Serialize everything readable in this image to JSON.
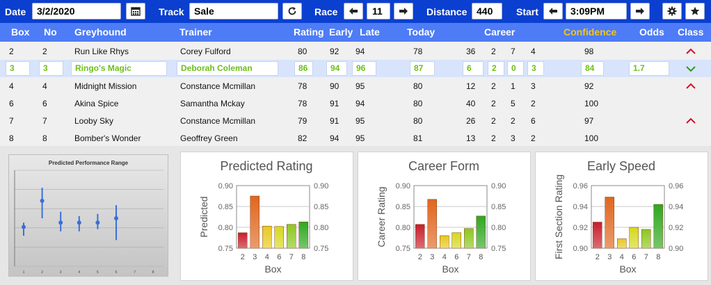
{
  "toolbar": {
    "date_label": "Date",
    "date_value": "3/2/2020",
    "track_label": "Track",
    "track_value": "Sale",
    "race_label": "Race",
    "race_value": "11",
    "distance_label": "Distance",
    "distance_value": "440",
    "start_label": "Start",
    "start_value": "3:09PM"
  },
  "columns": {
    "box": "Box",
    "no": "No",
    "greyhound": "Greyhound",
    "trainer": "Trainer",
    "rating": "Rating",
    "early": "Early",
    "late": "Late",
    "today": "Today",
    "career": "Career",
    "confidence": "Confidence",
    "odds": "Odds",
    "class": "Class"
  },
  "colors": {
    "toolbar": "#0b3fcf",
    "header": "#4d7cf6",
    "confidence_header": "#f5c518",
    "selected_text": "#6cbf1a",
    "up": "#d0102a",
    "down": "#2a9a1a"
  },
  "rows": [
    {
      "box": "2",
      "no": "2",
      "greyhound": "Run Like Rhys",
      "trainer": "Corey Fulford",
      "rating": "80",
      "early": "92",
      "late": "94",
      "today": "78",
      "c1": "36",
      "c2": "2",
      "c3": "7",
      "c4": "4",
      "confidence": "98",
      "odds": "",
      "class": "up",
      "selected": false
    },
    {
      "box": "3",
      "no": "3",
      "greyhound": "Ringo's Magic",
      "trainer": "Deborah Coleman",
      "rating": "86",
      "early": "94",
      "late": "96",
      "today": "87",
      "c1": "6",
      "c2": "2",
      "c3": "0",
      "c4": "3",
      "confidence": "84",
      "odds": "1.7",
      "class": "down",
      "selected": true
    },
    {
      "box": "4",
      "no": "4",
      "greyhound": "Midnight Mission",
      "trainer": "Constance Mcmillan",
      "rating": "78",
      "early": "90",
      "late": "95",
      "today": "80",
      "c1": "12",
      "c2": "2",
      "c3": "1",
      "c4": "3",
      "confidence": "92",
      "odds": "",
      "class": "up",
      "selected": false
    },
    {
      "box": "6",
      "no": "6",
      "greyhound": "Akina Spice",
      "trainer": "Samantha Mckay",
      "rating": "78",
      "early": "91",
      "late": "94",
      "today": "80",
      "c1": "40",
      "c2": "2",
      "c3": "5",
      "c4": "2",
      "confidence": "100",
      "odds": "",
      "class": "",
      "selected": false
    },
    {
      "box": "7",
      "no": "7",
      "greyhound": "Looby Sky",
      "trainer": "Constance Mcmillan",
      "rating": "79",
      "early": "91",
      "late": "95",
      "today": "80",
      "c1": "26",
      "c2": "2",
      "c3": "2",
      "c4": "6",
      "confidence": "97",
      "odds": "",
      "class": "up",
      "selected": false
    },
    {
      "box": "8",
      "no": "8",
      "greyhound": "Bomber's Wonder",
      "trainer": "Geoffrey Green",
      "rating": "82",
      "early": "94",
      "late": "95",
      "today": "81",
      "c1": "13",
      "c2": "2",
      "c3": "3",
      "c4": "2",
      "confidence": "100",
      "odds": "",
      "class": "",
      "selected": false
    }
  ],
  "chart_data": [
    {
      "type": "scatter",
      "title": "Predicted Performance Range",
      "x": [
        1,
        2,
        3,
        4,
        5,
        6
      ],
      "x_ticks": [
        "1",
        "2",
        "3",
        "4",
        "5",
        "6",
        "7",
        "8"
      ],
      "y": [
        0.79,
        0.85,
        0.8,
        0.8,
        0.8,
        0.81
      ],
      "error_low": [
        0.77,
        0.81,
        0.78,
        0.78,
        0.785,
        0.76
      ],
      "error_high": [
        0.8,
        0.88,
        0.825,
        0.815,
        0.82,
        0.84
      ],
      "ylim": [
        0.7,
        0.92
      ],
      "color": "#3a6fd8"
    },
    {
      "type": "bar",
      "title": "Predicted Rating",
      "xlabel": "Box",
      "ylabel": "Predicted",
      "categories": [
        "2",
        "3",
        "4",
        "6",
        "7",
        "8"
      ],
      "values": [
        0.787,
        0.875,
        0.803,
        0.802,
        0.807,
        0.813
      ],
      "ylim": [
        0.75,
        0.9
      ],
      "yticks": [
        "0.75",
        "0.80",
        "0.85",
        "0.90"
      ],
      "colors": [
        "#c81e2c",
        "#e0661e",
        "#e8c81e",
        "#d6d81e",
        "#8cc81e",
        "#2ea81e"
      ]
    },
    {
      "type": "bar",
      "title": "Career Form",
      "xlabel": "Box",
      "ylabel": "Career Rating",
      "categories": [
        "2",
        "3",
        "4",
        "6",
        "7",
        "8"
      ],
      "values": [
        0.807,
        0.867,
        0.78,
        0.787,
        0.797,
        0.827
      ],
      "ylim": [
        0.75,
        0.9
      ],
      "yticks": [
        "0.75",
        "0.80",
        "0.85",
        "0.90"
      ],
      "colors": [
        "#c81e2c",
        "#e0661e",
        "#e8c81e",
        "#d6d81e",
        "#8cc81e",
        "#2ea81e"
      ]
    },
    {
      "type": "bar",
      "title": "Early Speed",
      "xlabel": "Box",
      "ylabel": "First Section Rating",
      "categories": [
        "2",
        "3",
        "4",
        "6",
        "7",
        "8"
      ],
      "values": [
        0.925,
        0.949,
        0.909,
        0.92,
        0.918,
        0.942
      ],
      "ylim": [
        0.9,
        0.96
      ],
      "yticks": [
        "0.90",
        "0.92",
        "0.94",
        "0.96"
      ],
      "colors": [
        "#c81e2c",
        "#e0661e",
        "#e8c81e",
        "#d6d81e",
        "#8cc81e",
        "#2ea81e"
      ]
    }
  ]
}
